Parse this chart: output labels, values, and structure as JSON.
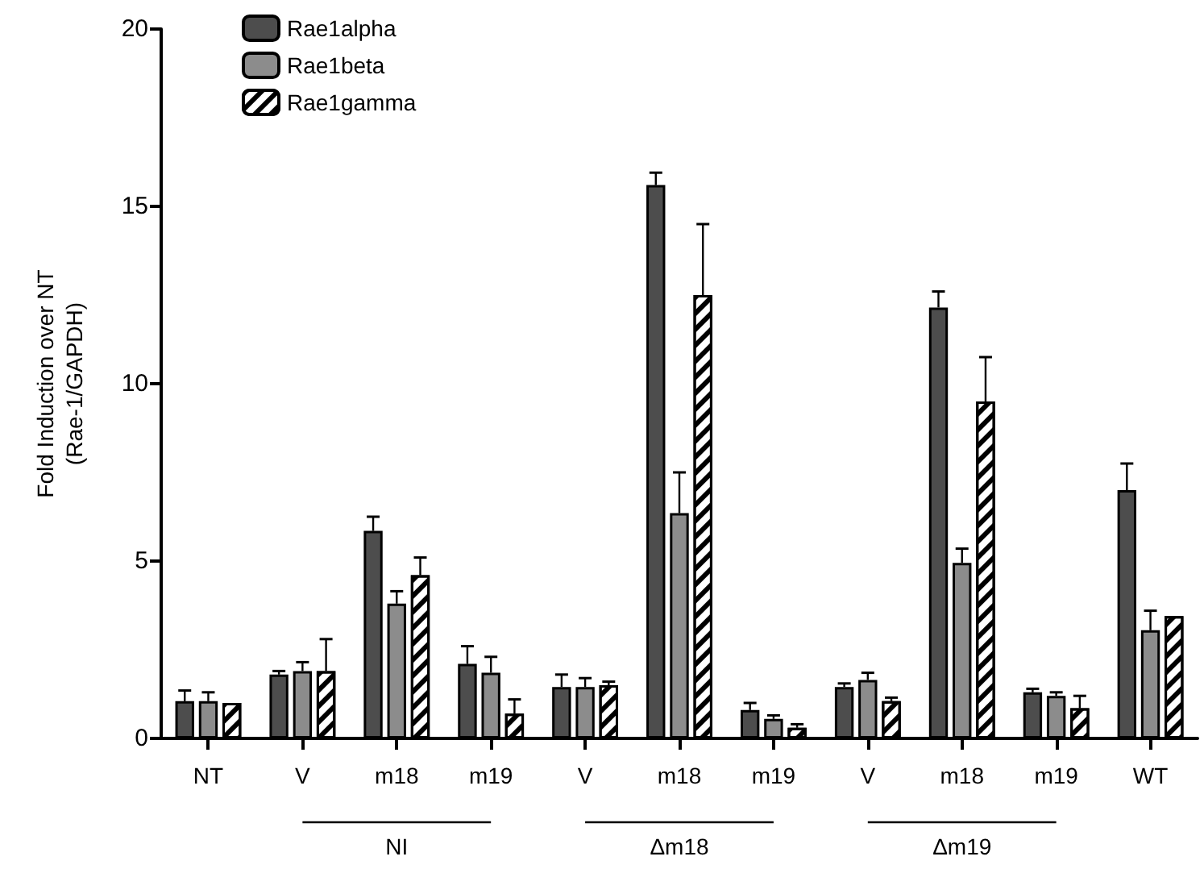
{
  "chart_data": {
    "type": "bar",
    "ylabel": "Fold Induction over NT\n(Rae-1/GAPDH)",
    "categories": [
      "NT",
      "V",
      "m18",
      "m19",
      "V",
      "m18",
      "m19",
      "V",
      "m18",
      "m19",
      "WT"
    ],
    "series": [
      {
        "name": "Rae1alpha",
        "color": "#4d4d4d",
        "values": [
          1.05,
          1.8,
          5.85,
          2.1,
          1.45,
          15.6,
          0.8,
          1.45,
          12.15,
          1.3,
          7.0
        ],
        "errors": [
          0.3,
          0.1,
          0.4,
          0.5,
          0.35,
          0.35,
          0.2,
          0.1,
          0.45,
          0.1,
          0.75
        ]
      },
      {
        "name": "Rae1beta",
        "color": "#8c8c8c",
        "values": [
          1.05,
          1.9,
          3.8,
          1.85,
          1.45,
          6.35,
          0.55,
          1.65,
          4.95,
          1.2,
          3.05
        ],
        "errors": [
          0.25,
          0.25,
          0.35,
          0.45,
          0.25,
          1.15,
          0.1,
          0.2,
          0.4,
          0.1,
          0.55
        ]
      },
      {
        "name": "Rae1gamma",
        "color": "#ffffff",
        "values": [
          1.0,
          1.9,
          4.6,
          0.7,
          1.5,
          12.5,
          0.3,
          1.05,
          9.5,
          0.85,
          3.45
        ],
        "errors": [
          null,
          0.9,
          0.5,
          0.4,
          0.1,
          2.0,
          0.1,
          0.1,
          1.25,
          0.35,
          null
        ]
      }
    ],
    "ylim": [
      0,
      20
    ],
    "yticks": [
      0,
      5,
      10,
      15,
      20
    ],
    "grid": false,
    "legend": "top left",
    "annotations": [
      "NI",
      "Δm18",
      "Δm19"
    ]
  }
}
